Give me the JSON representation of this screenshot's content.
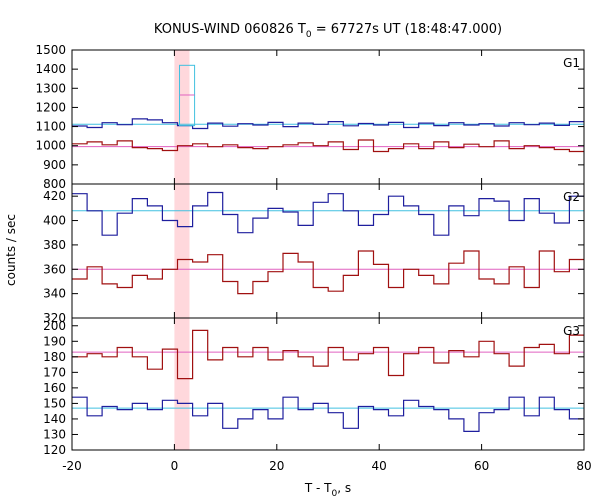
{
  "chart_data": {
    "type": "line",
    "title": "KONUS-WIND 060826 T",
    "title_sub": "0",
    "title_rest": " = 67727s UT (18:48:47.000)",
    "xlabel": "T - T",
    "xlabel_sub": "0",
    "xlabel_rest": ", s",
    "ylabel": "counts / sec",
    "xlim": [
      -20,
      80
    ],
    "x_ticks": [
      -20,
      0,
      20,
      40,
      60,
      80
    ],
    "highlight_interval": [
      0,
      2.944
    ],
    "colors": {
      "line_a": "#1f1f9e",
      "line_b": "#a01010",
      "bg_a": "#40c0e0",
      "bg_b": "#e060c0",
      "highlight": "#ffd8dc",
      "spike_cyan": "#40c0e0",
      "spike_pink": "#e060c0"
    },
    "bin_width": 2.944,
    "bin_start": -20,
    "panels": [
      {
        "label": "G1",
        "ylim": [
          800,
          1500
        ],
        "y_ticks": [
          800,
          900,
          1000,
          1100,
          1200,
          1300,
          1400,
          1500
        ],
        "series": [
          {
            "color_key": "line_a",
            "background": 1112,
            "bg_color_key": "bg_a",
            "values": [
              1103,
              1095,
              1120,
              1110,
              1140,
              1135,
              1120,
              1105,
              1090,
              1118,
              1102,
              1115,
              1108,
              1122,
              1100,
              1118,
              1112,
              1126,
              1104,
              1116,
              1108,
              1122,
              1095,
              1118,
              1105,
              1120,
              1108,
              1115,
              1103,
              1120,
              1110,
              1118,
              1106,
              1126
            ]
          },
          {
            "color_key": "line_b",
            "background": 995,
            "bg_color_key": "bg_b",
            "values": [
              1010,
              1020,
              1005,
              1025,
              990,
              985,
              975,
              1000,
              1010,
              995,
              1005,
              990,
              985,
              995,
              1005,
              1015,
              1000,
              1020,
              980,
              1030,
              970,
              985,
              1010,
              985,
              1020,
              990,
              1008,
              995,
              1025,
              985,
              1000,
              990,
              980,
              970
            ]
          }
        ],
        "spike": {
          "x0": 1.0,
          "x1": 3.944,
          "upper": 1420,
          "lower": 1265
        }
      },
      {
        "label": "G2",
        "ylim": [
          320,
          430
        ],
        "y_ticks": [
          320,
          340,
          360,
          380,
          400,
          420
        ],
        "series": [
          {
            "color_key": "line_a",
            "background": 408,
            "bg_color_key": "bg_a",
            "values": [
              422,
              408,
              388,
              406,
              418,
              412,
              400,
              395,
              412,
              423,
              405,
              390,
              402,
              410,
              407,
              396,
              415,
              422,
              408,
              396,
              405,
              420,
              412,
              405,
              388,
              412,
              404,
              418,
              416,
              400,
              418,
              406,
              398,
              420
            ]
          },
          {
            "color_key": "line_b",
            "background": 360,
            "bg_color_key": "bg_b",
            "values": [
              352,
              362,
              348,
              345,
              355,
              352,
              360,
              368,
              366,
              372,
              350,
              340,
              350,
              358,
              373,
              366,
              345,
              342,
              355,
              375,
              364,
              345,
              360,
              355,
              348,
              365,
              375,
              352,
              348,
              362,
              345,
              375,
              358,
              368
            ]
          }
        ]
      },
      {
        "label": "G3",
        "ylim": [
          120,
          205
        ],
        "y_ticks": [
          120,
          130,
          140,
          150,
          160,
          170,
          180,
          190,
          200
        ],
        "series": [
          {
            "color_key": "line_b",
            "background": 183,
            "bg_color_key": "bg_b",
            "values": [
              180,
              182,
              180,
              186,
              180,
              172,
              185,
              166,
              197,
              178,
              186,
              180,
              186,
              178,
              184,
              180,
              174,
              186,
              178,
              182,
              186,
              168,
              182,
              186,
              176,
              184,
              180,
              190,
              182,
              174,
              186,
              188,
              182,
              194
            ]
          },
          {
            "color_key": "line_a",
            "background": 147,
            "bg_color_key": "bg_a",
            "values": [
              154,
              142,
              148,
              146,
              150,
              146,
              152,
              150,
              142,
              150,
              134,
              140,
              146,
              140,
              154,
              146,
              150,
              144,
              134,
              148,
              146,
              142,
              152,
              148,
              146,
              140,
              132,
              144,
              146,
              154,
              142,
              154,
              146,
              140
            ]
          }
        ]
      }
    ]
  }
}
